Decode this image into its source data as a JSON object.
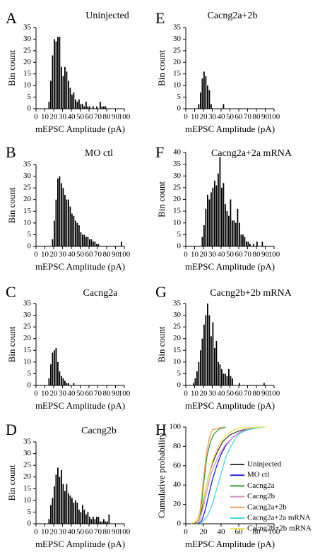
{
  "figure": {
    "panels": [
      {
        "letter": "A",
        "title": "Uninjected"
      },
      {
        "letter": "B",
        "title": "MO ctl"
      },
      {
        "letter": "C",
        "title": "Cacng2a"
      },
      {
        "letter": "D",
        "title": "Cacng2b"
      },
      {
        "letter": "E",
        "title": "Cacng2a+2b"
      },
      {
        "letter": "F",
        "title": "Cacng2a+2a mRNA"
      },
      {
        "letter": "G",
        "title": "Cacng2b+2b mRNA"
      },
      {
        "letter": "H",
        "title": ""
      }
    ]
  },
  "chart_data": [
    {
      "panel": "A",
      "type": "bar",
      "title": "Uninjected",
      "xlabel": "mEPSC Amplitude (pA)",
      "ylabel": "Bin count",
      "xlim": [
        0,
        100
      ],
      "ylim": [
        0,
        35
      ],
      "bin_width": 2,
      "x_ticks": [
        0,
        10,
        20,
        30,
        40,
        50,
        60,
        70,
        80,
        90,
        100
      ],
      "y_ticks": [
        0,
        5,
        10,
        15,
        20,
        25,
        30,
        35
      ],
      "x": [
        14,
        16,
        18,
        20,
        22,
        24,
        26,
        28,
        30,
        32,
        34,
        36,
        38,
        40,
        42,
        44,
        46,
        48,
        50,
        52,
        54,
        56,
        58,
        60,
        62,
        64,
        66,
        68,
        70,
        72,
        74,
        76,
        78,
        80
      ],
      "values": [
        3,
        12,
        23,
        30,
        29,
        31,
        31,
        18,
        14,
        18,
        16,
        12,
        9,
        6,
        7,
        4,
        3,
        4,
        2,
        2,
        1,
        3,
        1,
        1,
        0,
        1,
        0,
        1,
        0,
        3,
        1,
        1,
        1,
        0
      ]
    },
    {
      "panel": "B",
      "type": "bar",
      "title": "MO ctl",
      "xlabel": "mEPSC Amplitude (pA)",
      "ylabel": "Bin count",
      "xlim": [
        0,
        100
      ],
      "ylim": [
        0,
        35
      ],
      "bin_width": 2,
      "x_ticks": [
        0,
        10,
        20,
        30,
        40,
        50,
        60,
        70,
        80,
        90,
        100
      ],
      "y_ticks": [
        0,
        5,
        10,
        15,
        20,
        25,
        30,
        35
      ],
      "x": [
        18,
        20,
        22,
        24,
        26,
        28,
        30,
        32,
        34,
        36,
        38,
        40,
        42,
        44,
        46,
        48,
        50,
        52,
        54,
        56,
        58,
        60,
        62,
        64,
        66,
        68,
        70,
        96
      ],
      "values": [
        3,
        11,
        20,
        29,
        30,
        27,
        25,
        22,
        20,
        20,
        17,
        14,
        13,
        11,
        10,
        9,
        6,
        5,
        5,
        4,
        4,
        3,
        3,
        2,
        2,
        1,
        1,
        2
      ]
    },
    {
      "panel": "C",
      "type": "bar",
      "title": "Cacng2a",
      "xlabel": "mEPSC Amplitude (pA)",
      "ylabel": "Bin count",
      "xlim": [
        0,
        100
      ],
      "ylim": [
        0,
        35
      ],
      "bin_width": 2,
      "x_ticks": [
        0,
        10,
        20,
        30,
        40,
        50,
        60,
        70,
        80,
        90,
        100
      ],
      "y_ticks": [
        0,
        5,
        10,
        15,
        20,
        25,
        30,
        35
      ],
      "x": [
        14,
        16,
        18,
        20,
        22,
        24,
        26,
        28,
        30,
        32,
        34,
        36,
        42
      ],
      "values": [
        3,
        9,
        14,
        15,
        16,
        10,
        6,
        4,
        3,
        2,
        1,
        1,
        1
      ]
    },
    {
      "panel": "D",
      "type": "bar",
      "title": "Cacng2b",
      "xlabel": "mEPSC Amplitude (pA)",
      "ylabel": "Bin count",
      "xlim": [
        0,
        100
      ],
      "ylim": [
        0,
        35
      ],
      "bin_width": 2,
      "x_ticks": [
        0,
        10,
        20,
        30,
        40,
        50,
        60,
        70,
        80,
        90,
        100
      ],
      "y_ticks": [
        0,
        5,
        10,
        15,
        20,
        25,
        30,
        35
      ],
      "x": [
        14,
        16,
        18,
        20,
        22,
        24,
        26,
        28,
        30,
        32,
        34,
        36,
        38,
        40,
        42,
        44,
        46,
        48,
        50,
        52,
        54,
        56,
        58,
        60,
        62,
        64,
        66,
        68,
        70,
        72,
        74,
        76,
        78,
        80,
        82
      ],
      "values": [
        2,
        8,
        11,
        16,
        21,
        24,
        20,
        23,
        17,
        14,
        17,
        13,
        12,
        11,
        9,
        10,
        9,
        6,
        5,
        8,
        6,
        4,
        5,
        3,
        2,
        3,
        2,
        3,
        3,
        1,
        1,
        2,
        1,
        1,
        4
      ]
    },
    {
      "panel": "E",
      "type": "bar",
      "title": "Cacng2a+2b",
      "xlabel": "mEPSC Amplitude (pA)",
      "ylabel": "Bin count",
      "xlim": [
        0,
        100
      ],
      "ylim": [
        0,
        35
      ],
      "bin_width": 2,
      "x_ticks": [
        0,
        10,
        20,
        30,
        40,
        50,
        60,
        70,
        80,
        90,
        100
      ],
      "y_ticks": [
        0,
        5,
        10,
        15,
        20,
        25,
        30,
        35
      ],
      "x": [
        14,
        16,
        18,
        20,
        22,
        24,
        26,
        28,
        42
      ],
      "values": [
        2,
        7,
        13,
        16,
        14,
        10,
        8,
        2,
        2
      ]
    },
    {
      "panel": "F",
      "type": "bar",
      "title": "Cacng2a+2a mRNA",
      "xlabel": "mEPSC Amplitude (pA)",
      "ylabel": "Bin count",
      "xlim": [
        0,
        100
      ],
      "ylim": [
        0,
        40
      ],
      "bin_width": 2,
      "x_ticks": [
        0,
        10,
        20,
        30,
        40,
        50,
        60,
        70,
        80,
        90,
        100
      ],
      "y_ticks": [
        0,
        5,
        10,
        15,
        20,
        25,
        30,
        35,
        40
      ],
      "x": [
        18,
        20,
        22,
        24,
        26,
        28,
        30,
        32,
        34,
        36,
        38,
        40,
        42,
        44,
        46,
        48,
        50,
        52,
        54,
        56,
        58,
        60,
        62,
        64,
        66,
        68,
        70,
        72,
        76,
        80,
        86
      ],
      "values": [
        4,
        9,
        16,
        22,
        20,
        23,
        25,
        28,
        26,
        31,
        38,
        25,
        27,
        18,
        15,
        13,
        20,
        11,
        11,
        10,
        16,
        10,
        5,
        5,
        4,
        2,
        2,
        1,
        1,
        2,
        2
      ]
    },
    {
      "panel": "G",
      "type": "bar",
      "title": "Cacng2b+2b mRNA",
      "xlabel": "mEPSC Amplitude (pA)",
      "ylabel": "Bin count",
      "xlim": [
        0,
        100
      ],
      "ylim": [
        0,
        35
      ],
      "bin_width": 2,
      "x_ticks": [
        0,
        10,
        20,
        30,
        40,
        50,
        60,
        70,
        80,
        90,
        100
      ],
      "y_ticks": [
        0,
        5,
        10,
        15,
        20,
        25,
        30,
        35
      ],
      "x": [
        8,
        10,
        12,
        14,
        16,
        18,
        20,
        22,
        24,
        26,
        28,
        30,
        32,
        34,
        36,
        38,
        40,
        42,
        44,
        46,
        48,
        50,
        52,
        60,
        88
      ],
      "values": [
        1,
        3,
        6,
        10,
        15,
        20,
        26,
        30,
        35,
        30,
        21,
        27,
        16,
        19,
        10,
        9,
        7,
        5,
        5,
        4,
        7,
        4,
        3,
        1,
        1
      ]
    },
    {
      "panel": "H",
      "type": "line",
      "title": "",
      "xlabel": "mEPSC Amplitude (pA)",
      "ylabel": "Cumulative probability",
      "xlim": [
        0,
        100
      ],
      "ylim": [
        0,
        100
      ],
      "x_ticks": [
        0,
        20,
        40,
        60,
        80,
        100
      ],
      "y_ticks": [
        0,
        20,
        40,
        60,
        80,
        100
      ],
      "legend_position": "bottom-right",
      "series": [
        {
          "name": "Uninjected",
          "color": "#3a3a3a",
          "points": [
            [
              10,
              0
            ],
            [
              14,
              3
            ],
            [
              18,
              15
            ],
            [
              22,
              33
            ],
            [
              26,
              50
            ],
            [
              30,
              62
            ],
            [
              36,
              75
            ],
            [
              42,
              85
            ],
            [
              50,
              92
            ],
            [
              60,
              96
            ],
            [
              75,
              99
            ],
            [
              85,
              100
            ]
          ]
        },
        {
          "name": "MO ctl",
          "color": "#1f1fe0",
          "points": [
            [
              14,
              0
            ],
            [
              18,
              3
            ],
            [
              22,
              14
            ],
            [
              26,
              30
            ],
            [
              30,
              45
            ],
            [
              35,
              60
            ],
            [
              40,
              72
            ],
            [
              46,
              82
            ],
            [
              54,
              90
            ],
            [
              62,
              95
            ],
            [
              72,
              98
            ],
            [
              85,
              100
            ]
          ]
        },
        {
          "name": "Cacng2a",
          "color": "#2e9b2e",
          "points": [
            [
              12,
              0
            ],
            [
              15,
              5
            ],
            [
              18,
              22
            ],
            [
              21,
              48
            ],
            [
              24,
              70
            ],
            [
              28,
              85
            ],
            [
              32,
              93
            ],
            [
              38,
              98
            ],
            [
              45,
              100
            ]
          ]
        },
        {
          "name": "Cacng2b",
          "color": "#d98fc0",
          "points": [
            [
              12,
              0
            ],
            [
              16,
              4
            ],
            [
              20,
              18
            ],
            [
              24,
              34
            ],
            [
              28,
              50
            ],
            [
              32,
              60
            ],
            [
              38,
              72
            ],
            [
              45,
              82
            ],
            [
              52,
              88
            ],
            [
              60,
              94
            ],
            [
              70,
              98
            ],
            [
              85,
              100
            ]
          ]
        },
        {
          "name": "Cacng2a+2b",
          "color": "#f0a050",
          "points": [
            [
              12,
              0
            ],
            [
              15,
              6
            ],
            [
              18,
              28
            ],
            [
              21,
              55
            ],
            [
              24,
              76
            ],
            [
              27,
              90
            ],
            [
              30,
              97
            ],
            [
              42,
              100
            ]
          ]
        },
        {
          "name": "Cacng2a+2a mRNA",
          "color": "#40d8e8",
          "points": [
            [
              16,
              0
            ],
            [
              20,
              3
            ],
            [
              25,
              9
            ],
            [
              30,
              20
            ],
            [
              35,
              36
            ],
            [
              40,
              52
            ],
            [
              45,
              68
            ],
            [
              50,
              78
            ],
            [
              56,
              88
            ],
            [
              62,
              94
            ],
            [
              70,
              97
            ],
            [
              80,
              99
            ],
            [
              90,
              100
            ]
          ]
        },
        {
          "name": "Cacng2b+2b mRNA",
          "color": "#e8e040",
          "points": [
            [
              6,
              0
            ],
            [
              10,
              2
            ],
            [
              14,
              7
            ],
            [
              18,
              18
            ],
            [
              22,
              33
            ],
            [
              26,
              50
            ],
            [
              30,
              64
            ],
            [
              34,
              75
            ],
            [
              40,
              85
            ],
            [
              46,
              92
            ],
            [
              52,
              96
            ],
            [
              60,
              99
            ],
            [
              90,
              100
            ]
          ]
        }
      ]
    }
  ]
}
